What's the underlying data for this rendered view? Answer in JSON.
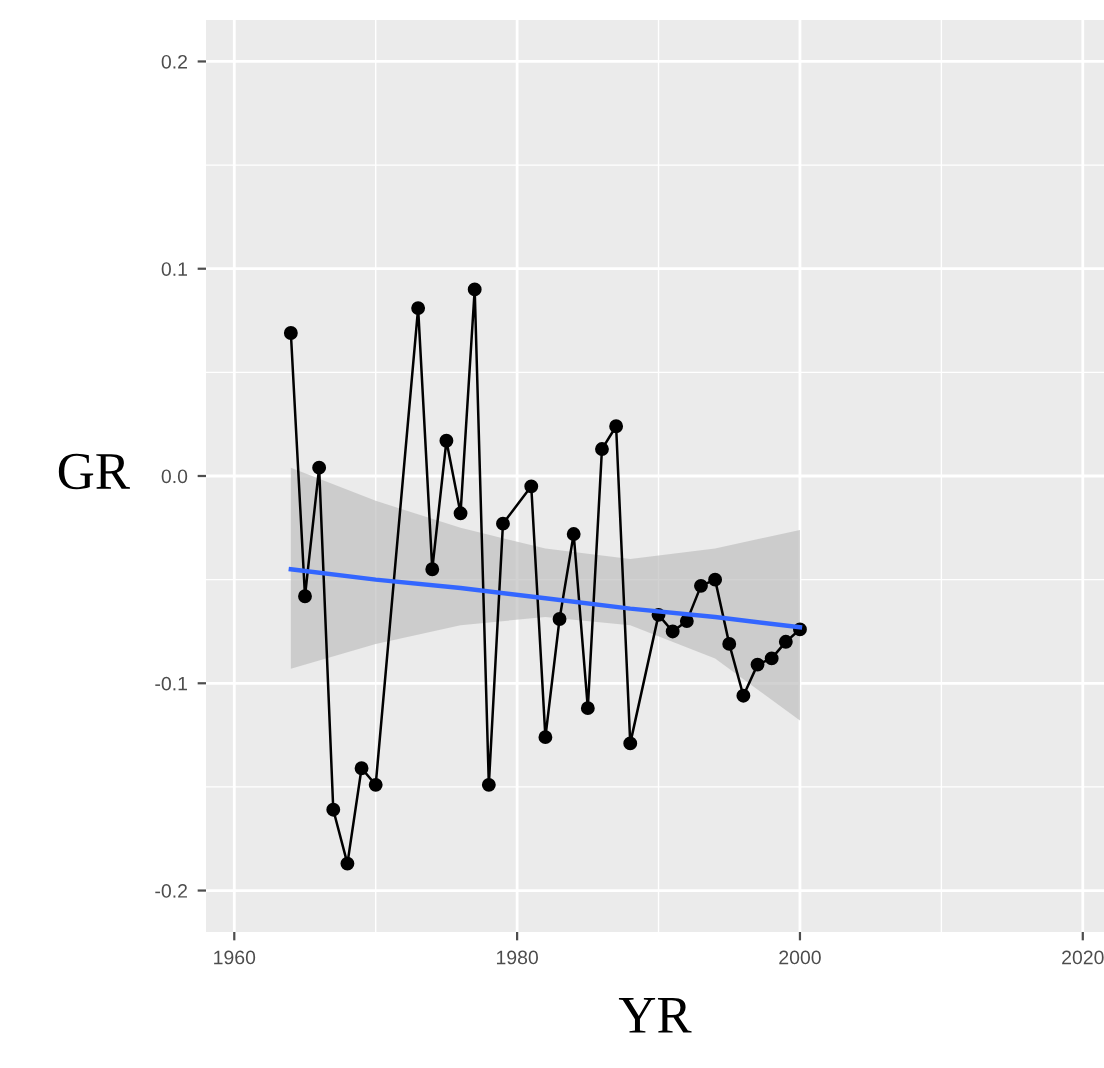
{
  "chart_data": {
    "type": "line",
    "xlabel": "YR",
    "ylabel": "GR",
    "xlim": [
      1958,
      2021.5
    ],
    "ylim": [
      -0.22,
      0.22
    ],
    "xticks": [
      1960,
      1980,
      2000,
      2020
    ],
    "yticks": [
      -0.2,
      -0.1,
      {
        "value": 0,
        "label": "0.0"
      },
      0.1,
      0.2
    ],
    "grid": true,
    "series": [
      {
        "color": "#3366ff",
        "marker": "none",
        "x": [
          1964,
          1970,
          1976,
          1982,
          1988,
          1994,
          2000
        ],
        "values": [
          -0.045,
          -0.05,
          -0.054,
          -0.059,
          -0.064,
          -0.068,
          -0.073
        ],
        "lower": [
          -0.093,
          -0.081,
          -0.072,
          -0.068,
          -0.072,
          -0.088,
          -0.118
        ],
        "upper": [
          0.004,
          -0.012,
          -0.025,
          -0.035,
          -0.04,
          -0.035,
          -0.026
        ]
      },
      {
        "color": "#000000",
        "marker": "circle",
        "x": [
          1964,
          1965,
          1966,
          1967,
          1968,
          1969,
          1970,
          1973,
          1974,
          1975,
          1976,
          1977,
          1978,
          1979,
          1981,
          1982,
          1983,
          1984,
          1985,
          1986,
          1987,
          1988,
          1990,
          1991,
          1992,
          1993,
          1994,
          1995,
          1996,
          1997,
          1998,
          1999,
          2000
        ],
        "values": [
          0.069,
          -0.058,
          0.004,
          -0.161,
          -0.187,
          -0.141,
          -0.149,
          0.081,
          -0.045,
          0.017,
          -0.018,
          0.09,
          -0.149,
          -0.023,
          -0.005,
          -0.126,
          -0.069,
          -0.028,
          -0.112,
          0.013,
          0.024,
          -0.129,
          -0.067,
          -0.075,
          -0.07,
          -0.053,
          -0.05,
          -0.081,
          -0.106,
          -0.091,
          -0.088,
          -0.08,
          -0.074
        ]
      }
    ]
  }
}
